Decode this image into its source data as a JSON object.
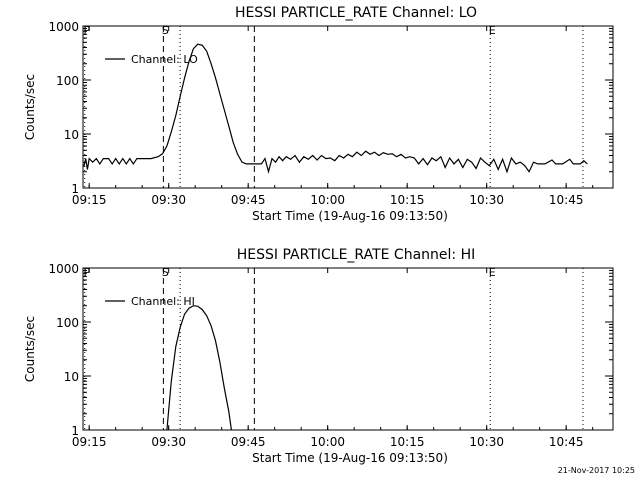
{
  "footer_timestamp": "21-Nov-2017 10:25",
  "chart_data": [
    {
      "type": "line",
      "title": "HESSI PARTICLE_RATE Channel: LO",
      "xlabel": "Start Time (19-Aug-16 09:13:50)",
      "ylabel": "Counts/sec",
      "y_scale": "log",
      "ylim": [
        1,
        1000
      ],
      "xlim": [
        "09:13:50",
        "10:53:50"
      ],
      "grid": false,
      "legend_position": "top-left",
      "x_ticks": [
        "09:15",
        "09:30",
        "09:45",
        "10:00",
        "10:15",
        "10:30",
        "10:45"
      ],
      "y_ticks": [
        "1",
        "10",
        "100",
        "1000"
      ],
      "markers": [
        {
          "label": "P",
          "time": "09:14:10",
          "style": "dotted"
        },
        {
          "label": "S",
          "time": "09:29:00",
          "style": "dashed"
        },
        {
          "label": "",
          "time": "09:32:10",
          "style": "dotted"
        },
        {
          "label": "",
          "time": "09:46:10",
          "style": "dashed"
        },
        {
          "label": "E",
          "time": "10:30:40",
          "style": "dotted"
        },
        {
          "label": "",
          "time": "10:48:10",
          "style": "dotted"
        }
      ],
      "series": [
        {
          "name": "Channel: LO",
          "points": [
            [
              "09:14:00",
              2.5
            ],
            [
              "09:14:20",
              3.5
            ],
            [
              "09:14:40",
              2.2
            ],
            [
              "09:15:00",
              3.5
            ],
            [
              "09:15:40",
              3.0
            ],
            [
              "09:16:20",
              3.5
            ],
            [
              "09:17:00",
              2.8
            ],
            [
              "09:17:40",
              3.5
            ],
            [
              "09:18:40",
              3.5
            ],
            [
              "09:19:20",
              2.8
            ],
            [
              "09:20:00",
              3.5
            ],
            [
              "09:20:40",
              2.8
            ],
            [
              "09:21:20",
              3.5
            ],
            [
              "09:22:00",
              2.8
            ],
            [
              "09:22:40",
              3.5
            ],
            [
              "09:23:20",
              2.8
            ],
            [
              "09:24:00",
              3.5
            ],
            [
              "09:25:20",
              3.5
            ],
            [
              "09:26:40",
              3.5
            ],
            [
              "09:28:00",
              3.8
            ],
            [
              "09:28:50",
              4.3
            ],
            [
              "09:29:40",
              6
            ],
            [
              "09:30:30",
              11
            ],
            [
              "09:31:20",
              22
            ],
            [
              "09:32:10",
              50
            ],
            [
              "09:33:00",
              110
            ],
            [
              "09:33:50",
              220
            ],
            [
              "09:34:40",
              380
            ],
            [
              "09:35:30",
              460
            ],
            [
              "09:36:20",
              440
            ],
            [
              "09:37:10",
              340
            ],
            [
              "09:38:00",
              200
            ],
            [
              "09:38:50",
              110
            ],
            [
              "09:39:40",
              55
            ],
            [
              "09:40:30",
              28
            ],
            [
              "09:41:20",
              14
            ],
            [
              "09:42:10",
              7
            ],
            [
              "09:43:00",
              4.2
            ],
            [
              "09:43:50",
              3.0
            ],
            [
              "09:44:40",
              2.8
            ],
            [
              "09:45:30",
              2.8
            ],
            [
              "09:46:30",
              2.8
            ],
            [
              "09:47:30",
              2.8
            ],
            [
              "09:48:10",
              3.5
            ],
            [
              "09:48:50",
              2.0
            ],
            [
              "09:49:30",
              3.5
            ],
            [
              "09:50:10",
              3.0
            ],
            [
              "09:50:50",
              3.8
            ],
            [
              "09:51:30",
              3.2
            ],
            [
              "09:52:10",
              3.8
            ],
            [
              "09:53:00",
              3.4
            ],
            [
              "09:53:50",
              4.0
            ],
            [
              "09:54:40",
              3.0
            ],
            [
              "09:55:30",
              3.8
            ],
            [
              "09:56:20",
              3.4
            ],
            [
              "09:57:10",
              4.0
            ],
            [
              "09:58:00",
              3.3
            ],
            [
              "09:58:50",
              4.0
            ],
            [
              "09:59:40",
              3.5
            ],
            [
              "10:00:30",
              3.6
            ],
            [
              "10:01:20",
              3.2
            ],
            [
              "10:02:10",
              4.0
            ],
            [
              "10:03:00",
              3.6
            ],
            [
              "10:03:50",
              4.2
            ],
            [
              "10:04:40",
              3.8
            ],
            [
              "10:05:30",
              4.6
            ],
            [
              "10:06:20",
              4.0
            ],
            [
              "10:07:10",
              4.8
            ],
            [
              "10:08:00",
              4.2
            ],
            [
              "10:08:50",
              4.6
            ],
            [
              "10:09:40",
              4.0
            ],
            [
              "10:10:30",
              4.5
            ],
            [
              "10:11:20",
              4.2
            ],
            [
              "10:12:10",
              4.3
            ],
            [
              "10:13:00",
              3.8
            ],
            [
              "10:13:50",
              4.2
            ],
            [
              "10:14:40",
              3.6
            ],
            [
              "10:15:30",
              3.8
            ],
            [
              "10:16:20",
              3.6
            ],
            [
              "10:17:10",
              2.8
            ],
            [
              "10:18:00",
              3.5
            ],
            [
              "10:18:50",
              2.7
            ],
            [
              "10:19:40",
              3.6
            ],
            [
              "10:20:30",
              3.2
            ],
            [
              "10:21:20",
              3.8
            ],
            [
              "10:22:10",
              2.4
            ],
            [
              "10:23:00",
              3.6
            ],
            [
              "10:23:50",
              2.8
            ],
            [
              "10:24:40",
              3.4
            ],
            [
              "10:25:30",
              2.4
            ],
            [
              "10:26:20",
              3.4
            ],
            [
              "10:27:10",
              3.0
            ],
            [
              "10:28:00",
              2.3
            ],
            [
              "10:28:50",
              3.6
            ],
            [
              "10:29:40",
              3.0
            ],
            [
              "10:30:30",
              2.6
            ],
            [
              "10:31:20",
              3.4
            ],
            [
              "10:32:10",
              2.2
            ],
            [
              "10:33:00",
              3.4
            ],
            [
              "10:33:50",
              2.0
            ],
            [
              "10:34:40",
              3.6
            ],
            [
              "10:35:30",
              2.8
            ],
            [
              "10:36:20",
              3.0
            ],
            [
              "10:37:10",
              2.6
            ],
            [
              "10:38:00",
              2.0
            ],
            [
              "10:38:50",
              3.0
            ],
            [
              "10:39:40",
              2.8
            ],
            [
              "10:41:00",
              2.8
            ],
            [
              "10:42:20",
              3.3
            ],
            [
              "10:43:00",
              2.8
            ],
            [
              "10:44:20",
              2.8
            ],
            [
              "10:45:40",
              3.4
            ],
            [
              "10:46:20",
              2.8
            ],
            [
              "10:47:40",
              2.8
            ],
            [
              "10:48:20",
              3.2
            ],
            [
              "10:49:00",
              2.8
            ]
          ]
        }
      ]
    },
    {
      "type": "line",
      "title": "HESSI PARTICLE_RATE Channel: HI",
      "xlabel": "Start Time (19-Aug-16 09:13:50)",
      "ylabel": "Counts/sec",
      "y_scale": "log",
      "ylim": [
        1,
        1000
      ],
      "xlim": [
        "09:13:50",
        "10:53:50"
      ],
      "grid": false,
      "legend_position": "top-left",
      "x_ticks": [
        "09:15",
        "09:30",
        "09:45",
        "10:00",
        "10:15",
        "10:30",
        "10:45"
      ],
      "y_ticks": [
        "1",
        "10",
        "100",
        "1000"
      ],
      "markers": [
        {
          "label": "P",
          "time": "09:14:10",
          "style": "dotted"
        },
        {
          "label": "S",
          "time": "09:29:00",
          "style": "dashed"
        },
        {
          "label": "",
          "time": "09:32:10",
          "style": "dotted"
        },
        {
          "label": "",
          "time": "09:46:10",
          "style": "dashed"
        },
        {
          "label": "E",
          "time": "10:30:40",
          "style": "dotted"
        },
        {
          "label": "",
          "time": "10:48:10",
          "style": "dotted"
        }
      ],
      "series": [
        {
          "name": "Channel: HI",
          "points": [
            [
              "09:29:40",
              1.0
            ],
            [
              "09:30:30",
              8
            ],
            [
              "09:31:20",
              35
            ],
            [
              "09:32:10",
              80
            ],
            [
              "09:33:00",
              140
            ],
            [
              "09:33:50",
              180
            ],
            [
              "09:34:40",
              200
            ],
            [
              "09:35:30",
              195
            ],
            [
              "09:36:20",
              170
            ],
            [
              "09:37:10",
              130
            ],
            [
              "09:38:00",
              85
            ],
            [
              "09:38:50",
              45
            ],
            [
              "09:39:40",
              18
            ],
            [
              "09:40:30",
              6
            ],
            [
              "09:41:20",
              2.2
            ],
            [
              "09:41:50",
              1.0
            ]
          ]
        }
      ]
    }
  ]
}
